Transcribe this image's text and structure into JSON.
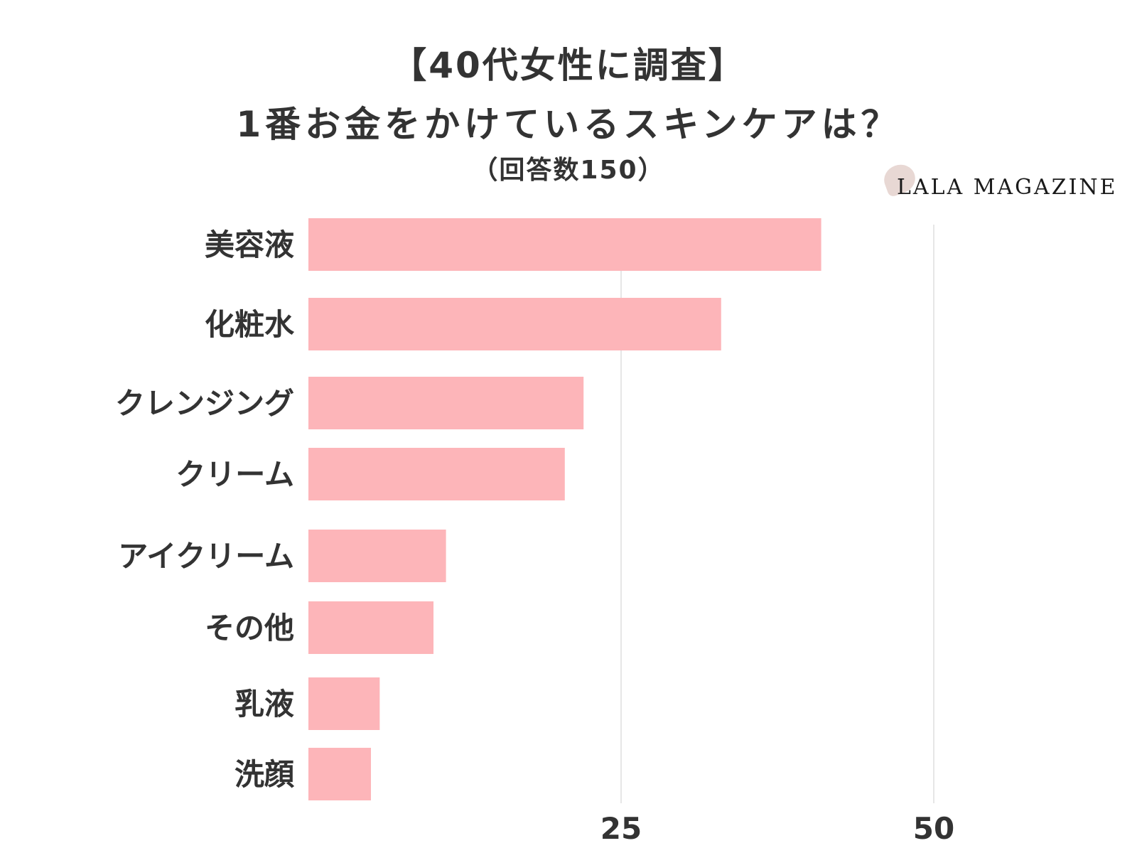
{
  "chart_data": {
    "type": "bar",
    "orientation": "horizontal",
    "title": "【40代女性に調査】",
    "subtitle": "1番お金をかけているスキンケアは？",
    "note": "（回答数150）",
    "categories": [
      "美容液",
      "化粧水",
      "クレンジング",
      "クリーム",
      "アイクリーム",
      "その他",
      "乳液",
      "洗顔"
    ],
    "values": [
      41,
      33,
      22,
      20.5,
      11,
      10,
      5.7,
      5
    ],
    "xlim": [
      0,
      50
    ],
    "xticks": [
      25,
      50
    ],
    "grid": true,
    "bar_color": "#fdb5b9",
    "grid_color": "#cccccc"
  },
  "brand": {
    "name": "LALA MAGAZINE",
    "mark_color": "#e8d8d4"
  }
}
